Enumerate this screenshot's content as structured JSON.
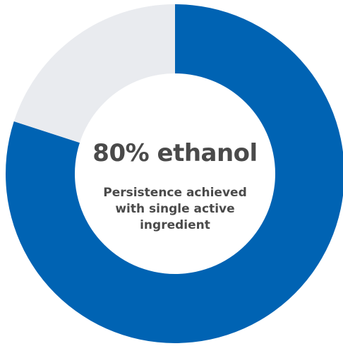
{
  "chart_data": {
    "type": "pie",
    "style": "donut",
    "slices": [
      {
        "value": 80,
        "color": "#0063b3"
      },
      {
        "value": 20,
        "color": "#e9ebef"
      }
    ],
    "center_title": "80% ethanol",
    "center_caption": [
      "Persistence achieved",
      "with single active",
      "ingredient"
    ]
  }
}
